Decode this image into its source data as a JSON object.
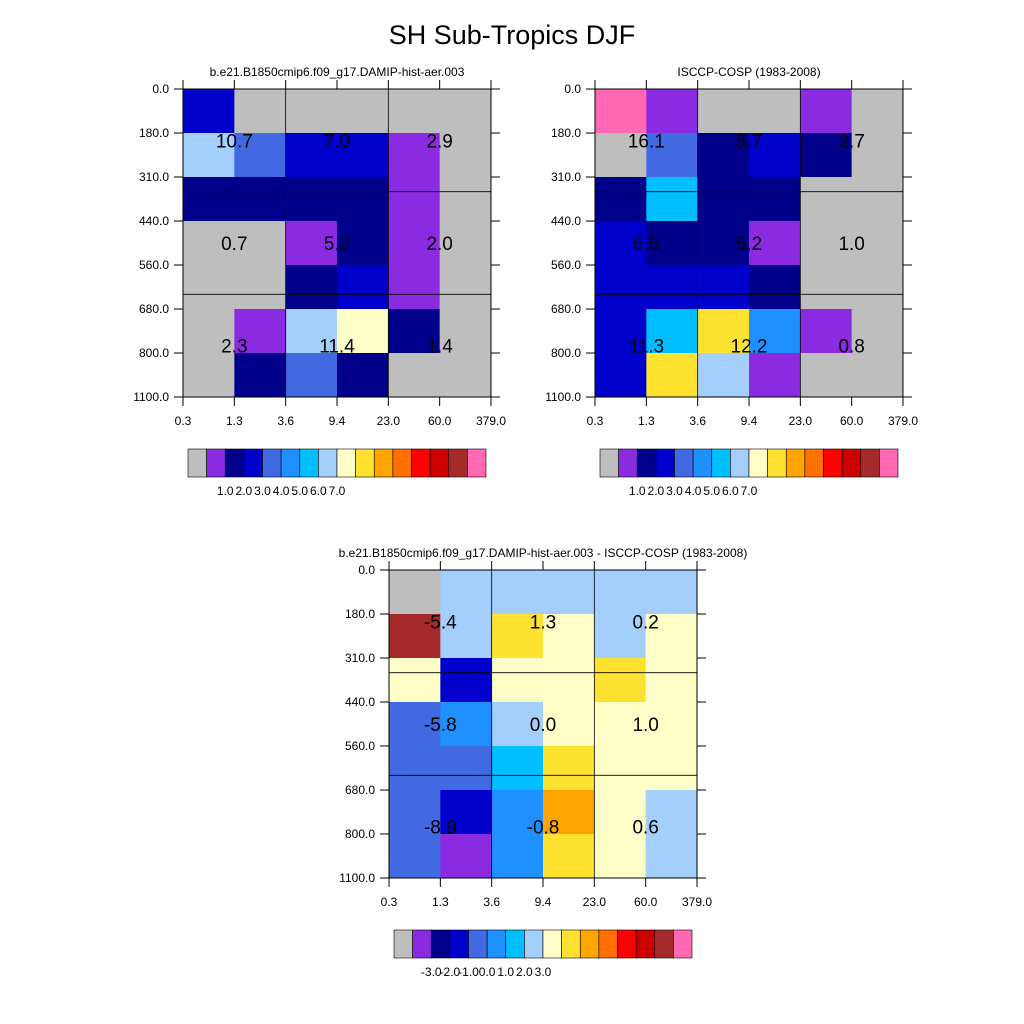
{
  "figure_title": "SH Sub-Tropics DJF",
  "palette": {
    "gray": "#bebebe",
    "purple": "#8a2be2",
    "navy": "#00008b",
    "blue": "#0000cd",
    "royal": "#4169e1",
    "dodger": "#1e90ff",
    "sky": "#00bfff",
    "lightblue": "#a4cefb",
    "cream": "#ffffc8",
    "gold": "#ffe130",
    "orange": "#ffa500",
    "darkorange": "#ff7000",
    "red": "#ff0000",
    "crimson": "#cd0000",
    "brown": "#a52a2a",
    "pink": "#ff69b4"
  },
  "colorbar_order": [
    "gray",
    "purple",
    "navy",
    "blue",
    "royal",
    "dodger",
    "sky",
    "lightblue",
    "cream",
    "gold",
    "orange",
    "darkorange",
    "red",
    "crimson",
    "brown",
    "pink"
  ],
  "chart_data": [
    {
      "type": "heatmap",
      "title": "b.e21.B1850cmip6.f09_g17.DAMIP-hist-aer.003",
      "x_tick_labels": [
        "0.3",
        "1.3",
        "3.6",
        "9.4",
        "23.0",
        "60.0",
        "379.0"
      ],
      "y_tick_labels": [
        "0.0",
        "180.0",
        "310.0",
        "440.0",
        "560.0",
        "680.0",
        "800.0",
        "1100.0"
      ],
      "cell_colors": [
        [
          "blue",
          "gray",
          "gray",
          "gray",
          "gray",
          "gray"
        ],
        [
          "lightblue",
          "royal",
          "blue",
          "blue",
          "purple",
          "gray"
        ],
        [
          "navy",
          "navy",
          "navy",
          "navy",
          "purple",
          "gray"
        ],
        [
          "gray",
          "gray",
          "purple",
          "navy",
          "purple",
          "gray"
        ],
        [
          "gray",
          "gray",
          "navy",
          "blue",
          "purple",
          "gray"
        ],
        [
          "gray",
          "purple",
          "lightblue",
          "cream",
          "navy",
          "gray"
        ],
        [
          "gray",
          "navy",
          "royal",
          "navy",
          "gray",
          "gray"
        ]
      ],
      "block_values": [
        [
          "10.7",
          "7.0",
          "2.9"
        ],
        [
          "0.7",
          "5.2",
          "2.0"
        ],
        [
          "2.3",
          "11.4",
          "1.4"
        ]
      ],
      "colorbar_labels": [
        "1.0",
        "2.0",
        "3.0",
        "4.0",
        "5.0",
        "6.0",
        "7.0"
      ]
    },
    {
      "type": "heatmap",
      "title": "ISCCP-COSP (1983-2008)",
      "x_tick_labels": [
        "0.3",
        "1.3",
        "3.6",
        "9.4",
        "23.0",
        "60.0",
        "379.0"
      ],
      "y_tick_labels": [
        "0.0",
        "180.0",
        "310.0",
        "440.0",
        "560.0",
        "680.0",
        "800.0",
        "1100.0"
      ],
      "cell_colors": [
        [
          "pink",
          "purple",
          "gray",
          "gray",
          "purple",
          "gray"
        ],
        [
          "gray",
          "royal",
          "navy",
          "blue",
          "navy",
          "gray"
        ],
        [
          "navy",
          "sky",
          "navy",
          "navy",
          "gray",
          "gray"
        ],
        [
          "blue",
          "navy",
          "navy",
          "purple",
          "gray",
          "gray"
        ],
        [
          "blue",
          "blue",
          "blue",
          "navy",
          "gray",
          "gray"
        ],
        [
          "blue",
          "sky",
          "gold",
          "dodger",
          "purple",
          "gray"
        ],
        [
          "blue",
          "gold",
          "lightblue",
          "purple",
          "gray",
          "gray"
        ]
      ],
      "block_values": [
        [
          "16.1",
          "5.7",
          "2.7"
        ],
        [
          "6.5",
          "5.2",
          "1.0"
        ],
        [
          "11.3",
          "12.2",
          "0.8"
        ]
      ],
      "colorbar_labels": [
        "1.0",
        "2.0",
        "3.0",
        "4.0",
        "5.0",
        "6.0",
        "7.0"
      ]
    },
    {
      "type": "heatmap",
      "title": "b.e21.B1850cmip6.f09_g17.DAMIP-hist-aer.003 - ISCCP-COSP (1983-2008)",
      "x_tick_labels": [
        "0.3",
        "1.3",
        "3.6",
        "9.4",
        "23.0",
        "60.0",
        "379.0"
      ],
      "y_tick_labels": [
        "0.0",
        "180.0",
        "310.0",
        "440.0",
        "560.0",
        "680.0",
        "800.0",
        "1100.0"
      ],
      "cell_colors": [
        [
          "gray",
          "lightblue",
          "lightblue",
          "lightblue",
          "lightblue",
          "lightblue"
        ],
        [
          "brown",
          "lightblue",
          "gold",
          "cream",
          "lightblue",
          "cream"
        ],
        [
          "cream",
          "blue",
          "cream",
          "cream",
          "gold",
          "cream"
        ],
        [
          "royal",
          "dodger",
          "lightblue",
          "cream",
          "cream",
          "cream"
        ],
        [
          "royal",
          "royal",
          "sky",
          "gold",
          "cream",
          "cream"
        ],
        [
          "royal",
          "blue",
          "dodger",
          "orange",
          "cream",
          "lightblue"
        ],
        [
          "royal",
          "purple",
          "dodger",
          "gold",
          "cream",
          "lightblue"
        ]
      ],
      "block_values": [
        [
          "-5.4",
          "1.3",
          "0.2"
        ],
        [
          "-5.8",
          "0.0",
          "1.0"
        ],
        [
          "-8.9",
          "-0.8",
          "0.6"
        ]
      ],
      "colorbar_labels": [
        "-3.0",
        "-2.0",
        "-1.0",
        "0.0",
        "1.0",
        "2.0",
        "3.0"
      ]
    }
  ]
}
